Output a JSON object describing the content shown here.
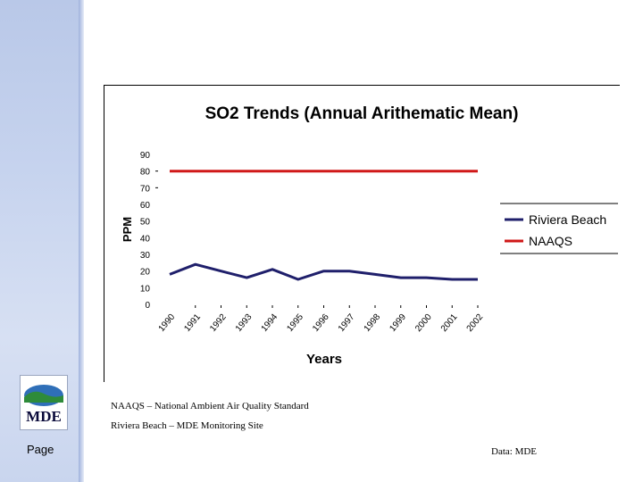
{
  "slide": {
    "page_label": "Page",
    "logo_text": "MDE",
    "note_1": "NAAQS – National Ambient Air Quality Standard",
    "note_2": "Riviera Beach – MDE Monitoring Site",
    "source": "Data: MDE"
  },
  "chart_data": {
    "type": "line",
    "title": "SO2 Trends (Annual Arithematic Mean)",
    "xlabel": "Years",
    "ylabel": "PPM",
    "ylim": [
      0,
      90
    ],
    "yticks": [
      0,
      10,
      20,
      30,
      40,
      50,
      60,
      70,
      80,
      90
    ],
    "categories": [
      "1990",
      "1991",
      "1992",
      "1993",
      "1994",
      "1995",
      "1996",
      "1997",
      "1998",
      "1999",
      "2000",
      "2001",
      "2002"
    ],
    "series": [
      {
        "name": "Riviera Beach",
        "color": "#1f1f6b",
        "values": [
          18,
          24,
          20,
          16,
          21,
          15,
          20,
          20,
          18,
          16,
          16,
          15,
          15
        ]
      },
      {
        "name": "NAAQS",
        "color": "#d01818",
        "values": [
          80,
          80,
          80,
          80,
          80,
          80,
          80,
          80,
          80,
          80,
          80,
          80,
          80
        ]
      }
    ],
    "legend_position": "right",
    "grid": false
  }
}
